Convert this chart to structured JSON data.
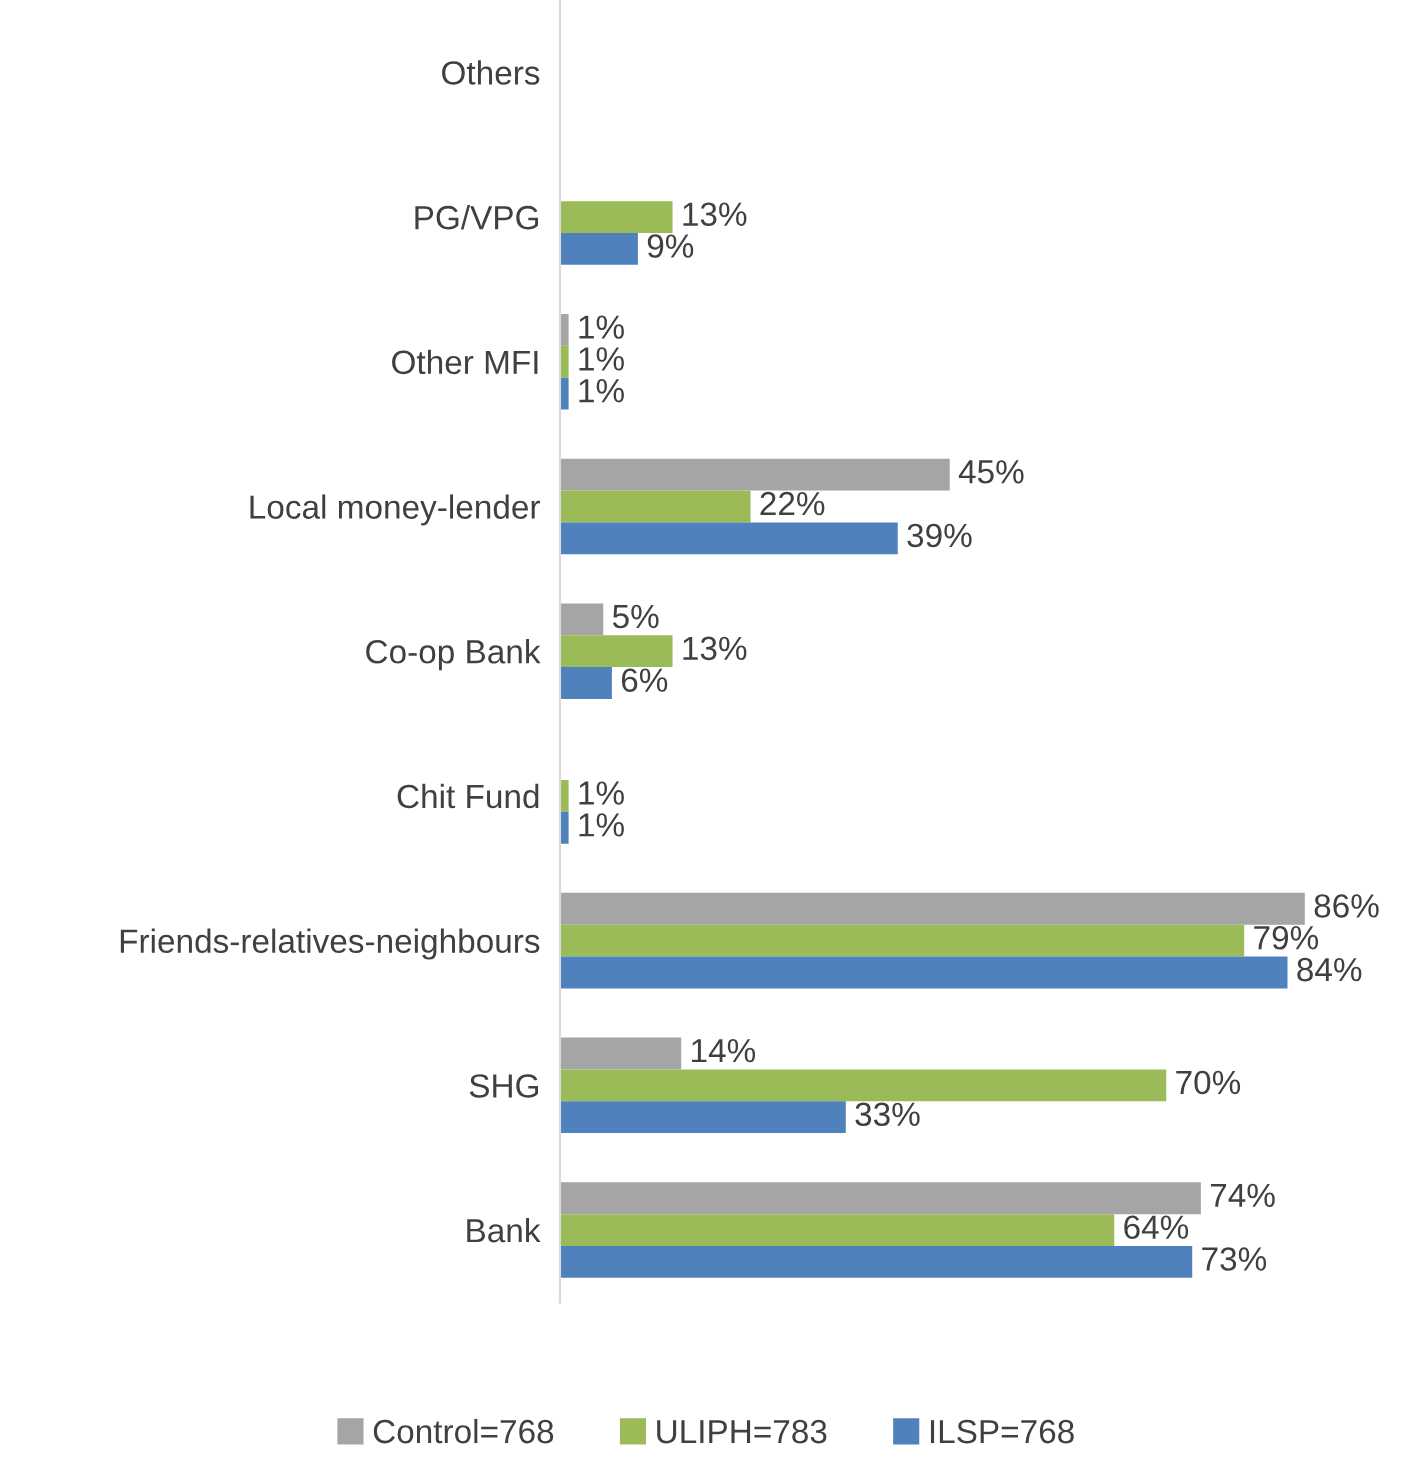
{
  "chart_data": {
    "type": "bar",
    "orientation": "horizontal",
    "categories": [
      "Others",
      "PG/VPG",
      "Other MFI",
      "Local money-lender",
      "Co-op Bank",
      "Chit Fund",
      "Friends-relatives-neighbours",
      "SHG",
      "Bank"
    ],
    "series": [
      {
        "name": "Control=768",
        "color": "#a5a5a5",
        "values": [
          null,
          null,
          1,
          45,
          5,
          null,
          86,
          14,
          74
        ],
        "value_labels": [
          null,
          null,
          "1%",
          "45%",
          "5%",
          null,
          "86%",
          "14%",
          "74%"
        ]
      },
      {
        "name": "ULIPH=783",
        "color": "#9bbb59",
        "values": [
          null,
          13,
          1,
          22,
          13,
          1,
          79,
          70,
          64
        ],
        "value_labels": [
          null,
          "13%",
          "1%",
          "22%",
          "13%",
          "1%",
          "79%",
          "70%",
          "64%"
        ]
      },
      {
        "name": "ILSP=768",
        "color": "#4f81bd",
        "values": [
          null,
          9,
          1,
          39,
          6,
          1,
          84,
          33,
          73
        ],
        "value_labels": [
          null,
          "9%",
          "1%",
          "39%",
          "6%",
          "1%",
          "84%",
          "33%",
          "73%"
        ]
      }
    ],
    "tick_labels": "y",
    "grid": false,
    "legend": "bottom"
  }
}
